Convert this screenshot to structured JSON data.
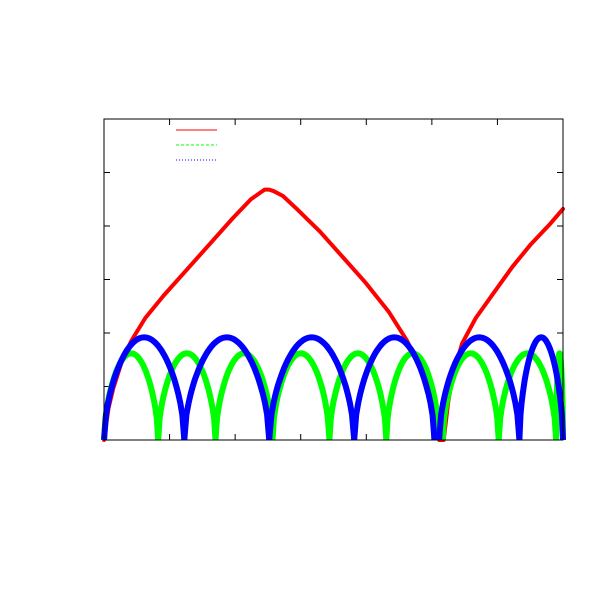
{
  "chart_data": {
    "type": "line",
    "title": "",
    "xlabel": "",
    "ylabel": "",
    "xlim": [
      0,
      1
    ],
    "ylim": [
      0,
      1
    ],
    "grid": false,
    "legend_position": "top-left",
    "legend_has_labels": false,
    "tick_labels_shown": false,
    "series": [
      {
        "color": "#ff0000",
        "line_style": "solid",
        "x": [
          0.0,
          0.01,
          0.02,
          0.04,
          0.06,
          0.09,
          0.13,
          0.18,
          0.23,
          0.28,
          0.32,
          0.35,
          0.36,
          0.37,
          0.39,
          0.42,
          0.47,
          0.52,
          0.57,
          0.62,
          0.66,
          0.69,
          0.71,
          0.72,
          0.73,
          0.74,
          0.75,
          0.76,
          0.78,
          0.81,
          0.85,
          0.89,
          0.93,
          0.97,
          1.0
        ],
        "y": [
          0.0,
          0.1,
          0.16,
          0.25,
          0.31,
          0.38,
          0.45,
          0.53,
          0.61,
          0.69,
          0.75,
          0.78,
          0.78,
          0.775,
          0.76,
          0.72,
          0.65,
          0.57,
          0.49,
          0.4,
          0.31,
          0.22,
          0.12,
          0.05,
          0.0,
          0.0,
          0.12,
          0.2,
          0.3,
          0.38,
          0.46,
          0.54,
          0.61,
          0.67,
          0.72
        ]
      },
      {
        "color": "#00ff00",
        "line_style": "dashed",
        "arches": [
          [
            0.0,
            0.118
          ],
          [
            0.118,
            0.243
          ],
          [
            0.243,
            0.367
          ],
          [
            0.367,
            0.491
          ],
          [
            0.491,
            0.615
          ],
          [
            0.615,
            0.73
          ],
          [
            0.738,
            0.86
          ],
          [
            0.86,
            0.985
          ],
          [
            0.985,
            1.0
          ]
        ],
        "peak": 0.27
      },
      {
        "color": "#0000ff",
        "line_style": "dotted",
        "arches": [
          [
            0.0,
            0.175
          ],
          [
            0.175,
            0.36
          ],
          [
            0.36,
            0.545
          ],
          [
            0.545,
            0.72
          ],
          [
            0.73,
            0.905
          ],
          [
            0.905,
            1.0
          ]
        ],
        "peak": 0.32
      }
    ]
  }
}
